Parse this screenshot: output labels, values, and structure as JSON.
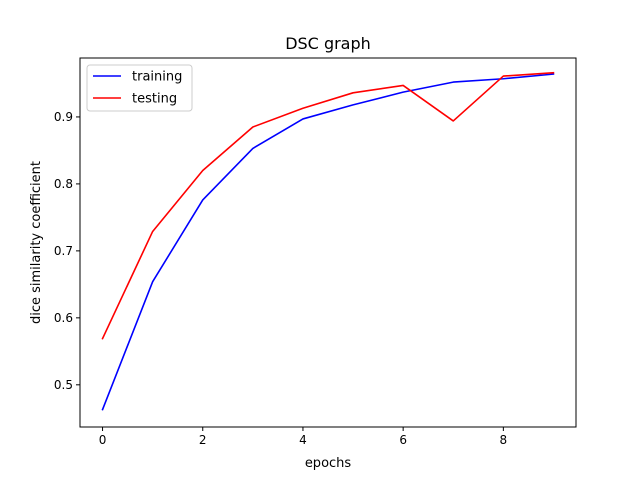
{
  "chart_data": {
    "type": "line",
    "title": "DSC graph",
    "xlabel": "epochs",
    "ylabel": "dice similarity coefficient",
    "x": [
      0,
      1,
      2,
      3,
      4,
      5,
      6,
      7,
      8,
      9
    ],
    "xlim": [
      -0.45,
      9.45
    ],
    "ylim": [
      0.437,
      0.988
    ],
    "xticks": [
      0,
      2,
      4,
      6,
      8
    ],
    "yticks": [
      0.5,
      0.6,
      0.7,
      0.8,
      0.9
    ],
    "xtick_labels": [
      "0",
      "2",
      "4",
      "6",
      "8"
    ],
    "ytick_labels": [
      "0.5",
      "0.6",
      "0.7",
      "0.8",
      "0.9"
    ],
    "grid": false,
    "legend_position": "top-left",
    "series": [
      {
        "name": "training",
        "color": "#0000ff",
        "values": [
          0.463,
          0.654,
          0.776,
          0.853,
          0.897,
          0.918,
          0.937,
          0.952,
          0.957,
          0.964
        ]
      },
      {
        "name": "testing",
        "color": "#ff0000",
        "values": [
          0.569,
          0.729,
          0.82,
          0.885,
          0.913,
          0.936,
          0.947,
          0.894,
          0.961,
          0.966
        ]
      }
    ]
  }
}
